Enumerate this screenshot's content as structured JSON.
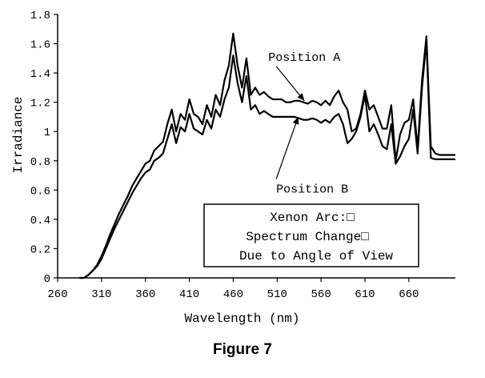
{
  "chart_data": {
    "type": "line",
    "xlabel": "Wavelength (nm)",
    "ylabel": "Irradiance",
    "xlim": [
      260,
      713
    ],
    "ylim": [
      0,
      1.8
    ],
    "x_ticks": [
      260,
      310,
      360,
      410,
      460,
      510,
      560,
      610,
      660
    ],
    "x_tick_labels": [
      "260",
      "310",
      "360",
      "410",
      "460",
      "510",
      "560",
      "610",
      "660"
    ],
    "y_ticks": [
      0,
      0.2,
      0.4,
      0.6,
      0.8,
      1,
      1.2,
      1.4,
      1.6,
      1.8
    ],
    "y_tick_labels": [
      "0",
      "0.2",
      "0.4",
      "0.6",
      "0.8",
      "1",
      "1.2",
      "1.4",
      "1.6",
      "1.8"
    ],
    "grid": false,
    "series": [
      {
        "name": "Position A",
        "x": [
          285,
          290,
          295,
          300,
          305,
          310,
          315,
          320,
          325,
          330,
          335,
          340,
          345,
          350,
          355,
          360,
          365,
          370,
          375,
          380,
          385,
          390,
          395,
          400,
          405,
          410,
          415,
          420,
          425,
          430,
          435,
          440,
          445,
          450,
          455,
          460,
          465,
          470,
          475,
          480,
          485,
          490,
          495,
          500,
          505,
          510,
          515,
          520,
          525,
          530,
          535,
          540,
          545,
          550,
          555,
          560,
          565,
          570,
          575,
          580,
          585,
          590,
          595,
          600,
          605,
          610,
          615,
          620,
          625,
          630,
          635,
          640,
          645,
          650,
          655,
          660,
          665,
          670,
          675,
          680,
          685,
          690,
          695,
          700,
          705,
          710,
          713
        ],
        "values": [
          0,
          0,
          0.02,
          0.05,
          0.09,
          0.15,
          0.22,
          0.3,
          0.37,
          0.44,
          0.5,
          0.56,
          0.63,
          0.68,
          0.73,
          0.78,
          0.8,
          0.87,
          0.9,
          0.93,
          1.05,
          1.15,
          1.0,
          1.12,
          1.08,
          1.22,
          1.12,
          1.1,
          1.05,
          1.18,
          1.1,
          1.25,
          1.18,
          1.35,
          1.45,
          1.67,
          1.45,
          1.3,
          1.5,
          1.25,
          1.3,
          1.25,
          1.27,
          1.24,
          1.22,
          1.22,
          1.22,
          1.2,
          1.2,
          1.21,
          1.21,
          1.2,
          1.19,
          1.21,
          1.2,
          1.18,
          1.21,
          1.18,
          1.24,
          1.28,
          1.2,
          1.15,
          1.0,
          1.02,
          1.12,
          1.28,
          1.15,
          1.18,
          1.1,
          1.02,
          1.02,
          1.18,
          0.8,
          0.98,
          1.06,
          1.08,
          1.22,
          0.88,
          1.35,
          1.65,
          0.9,
          0.85,
          0.84,
          0.84,
          0.84,
          0.84,
          0.84
        ]
      },
      {
        "name": "Position B",
        "x": [
          285,
          290,
          295,
          300,
          305,
          310,
          315,
          320,
          325,
          330,
          335,
          340,
          345,
          350,
          355,
          360,
          365,
          370,
          375,
          380,
          385,
          390,
          395,
          400,
          405,
          410,
          415,
          420,
          425,
          430,
          435,
          440,
          445,
          450,
          455,
          460,
          465,
          470,
          475,
          480,
          485,
          490,
          495,
          500,
          505,
          510,
          515,
          520,
          525,
          530,
          535,
          540,
          545,
          550,
          555,
          560,
          565,
          570,
          575,
          580,
          585,
          590,
          595,
          600,
          605,
          610,
          615,
          620,
          625,
          630,
          635,
          640,
          645,
          650,
          655,
          660,
          665,
          670,
          675,
          680,
          685,
          690,
          695,
          700,
          705,
          710,
          713
        ],
        "values": [
          0,
          0,
          0.02,
          0.05,
          0.08,
          0.13,
          0.2,
          0.27,
          0.34,
          0.4,
          0.46,
          0.52,
          0.58,
          0.63,
          0.68,
          0.72,
          0.74,
          0.8,
          0.82,
          0.85,
          0.95,
          1.05,
          0.92,
          1.03,
          1.0,
          1.12,
          1.02,
          1.0,
          0.98,
          1.08,
          1.02,
          1.15,
          1.1,
          1.22,
          1.3,
          1.52,
          1.33,
          1.2,
          1.38,
          1.15,
          1.18,
          1.12,
          1.14,
          1.12,
          1.1,
          1.1,
          1.1,
          1.1,
          1.1,
          1.1,
          1.09,
          1.08,
          1.08,
          1.09,
          1.08,
          1.06,
          1.08,
          1.06,
          1.1,
          1.12,
          1.05,
          0.92,
          0.95,
          1.0,
          1.1,
          1.25,
          1.0,
          1.05,
          0.98,
          0.9,
          0.88,
          1.05,
          0.78,
          0.83,
          0.9,
          0.95,
          1.15,
          0.85,
          1.3,
          1.62,
          0.82,
          0.81,
          0.81,
          0.81,
          0.81,
          0.81,
          0.81
        ]
      }
    ],
    "annotations": [
      {
        "text": "Position A",
        "x": 582,
        "y": 1.51,
        "arrow_to": [
          541,
          1.21
        ]
      },
      {
        "text": "Position B",
        "x": 591,
        "y": 0.61,
        "arrow_to": [
          534,
          1.1
        ]
      }
    ],
    "text_box": [
      "Xenon Arc:□",
      "Spectrum Change□",
      "Due to Angle of View"
    ]
  },
  "figure_caption": "Figure 7"
}
